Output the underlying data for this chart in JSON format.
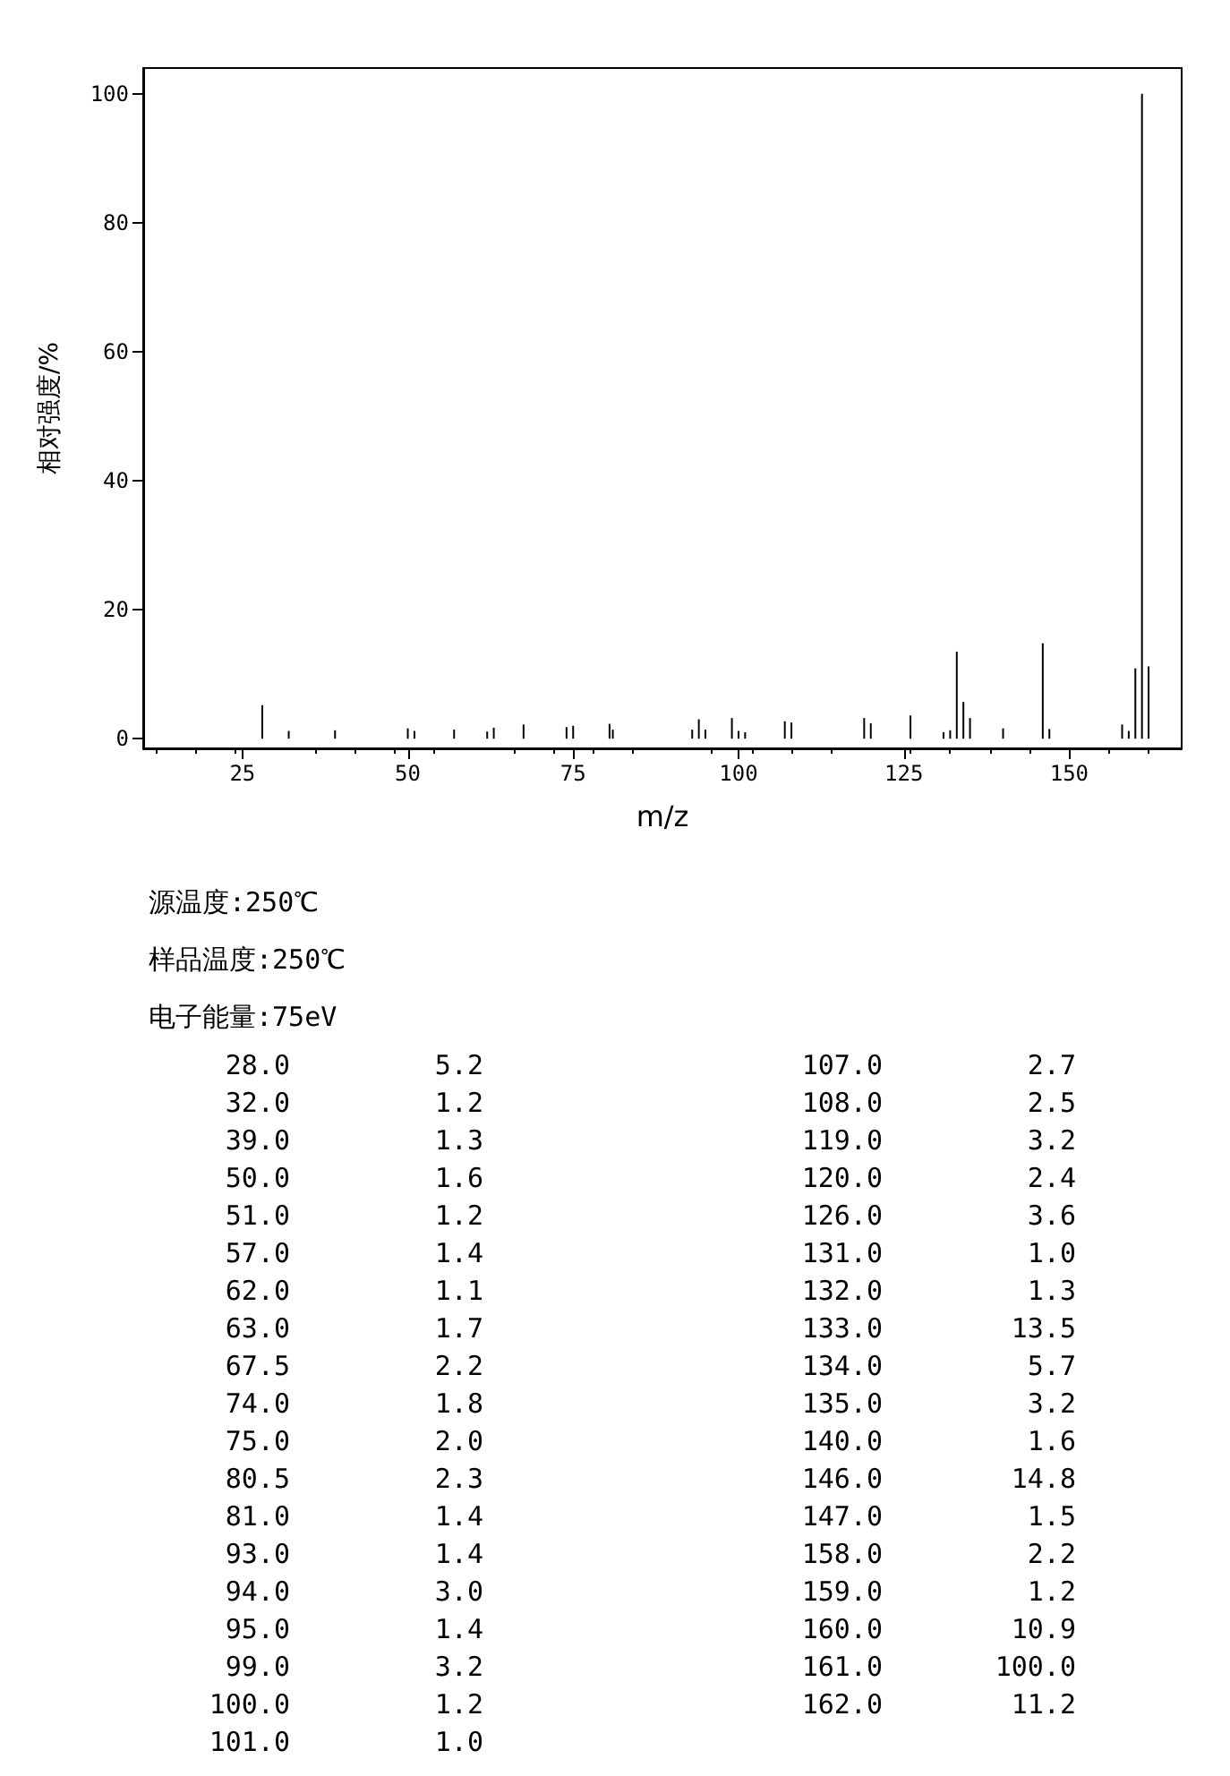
{
  "chart_data": [
    {
      "type": "bar",
      "xlabel": "m/z",
      "ylabel": "相对强度/%",
      "x": [
        28,
        32,
        39,
        50,
        51,
        57,
        62,
        63,
        67.5,
        74,
        75,
        80.5,
        81,
        93,
        94,
        95,
        99,
        100,
        101,
        107,
        108,
        119,
        120,
        126,
        131,
        132,
        133,
        134,
        135,
        140,
        146,
        147,
        158,
        159,
        160,
        161,
        162
      ],
      "values": [
        5.2,
        1.2,
        1.3,
        1.6,
        1.2,
        1.4,
        1.1,
        1.7,
        2.2,
        1.8,
        2.0,
        2.3,
        1.4,
        1.4,
        3.0,
        1.4,
        3.2,
        1.2,
        1.0,
        2.7,
        2.5,
        3.2,
        2.4,
        3.6,
        1.0,
        1.3,
        13.5,
        5.7,
        3.2,
        1.6,
        14.8,
        1.5,
        2.2,
        1.2,
        10.9,
        100.0,
        11.2
      ],
      "color": "#000000",
      "xlim": [
        10,
        167
      ],
      "xticks": [
        25,
        50,
        75,
        100,
        125,
        150
      ],
      "ylim": [
        -1.5,
        104
      ],
      "yticks": [
        0,
        20,
        40,
        60,
        80,
        100
      ],
      "grid": false,
      "annotations": [
        "源温度:250℃",
        "样品温度:250℃",
        "电子能量:75eV"
      ]
    },
    {
      "type": "other",
      "annotations": [
        "28.0",
        "5.2",
        "32.0",
        "1.2",
        "39.0",
        "1.3",
        "50.0",
        "1.6",
        "51.0",
        "1.2",
        "57.0",
        "1.4",
        "62.0",
        "1.1",
        "63.0",
        "1.7",
        "67.5",
        "2.2",
        "74.0",
        "1.8",
        "75.0",
        "2.0",
        "80.5",
        "2.3",
        "81.0",
        "1.4",
        "93.0",
        "1.4",
        "94.0",
        "3.0",
        "95.0",
        "1.4",
        "99.0",
        "3.2",
        "100.0",
        "1.2",
        "101.0",
        "1.0",
        "107.0",
        "2.7",
        "108.0",
        "2.5",
        "119.0",
        "3.2",
        "120.0",
        "2.4",
        "126.0",
        "3.6",
        "131.0",
        "1.0",
        "132.0",
        "1.3",
        "133.0",
        "13.5",
        "134.0",
        "5.7",
        "135.0",
        "3.2",
        "140.0",
        "1.6",
        "146.0",
        "14.8",
        "147.0",
        "1.5",
        "158.0",
        "2.2",
        "159.0",
        "1.2",
        "160.0",
        "10.9",
        "161.0",
        "100.0",
        "162.0",
        "11.2"
      ]
    }
  ]
}
